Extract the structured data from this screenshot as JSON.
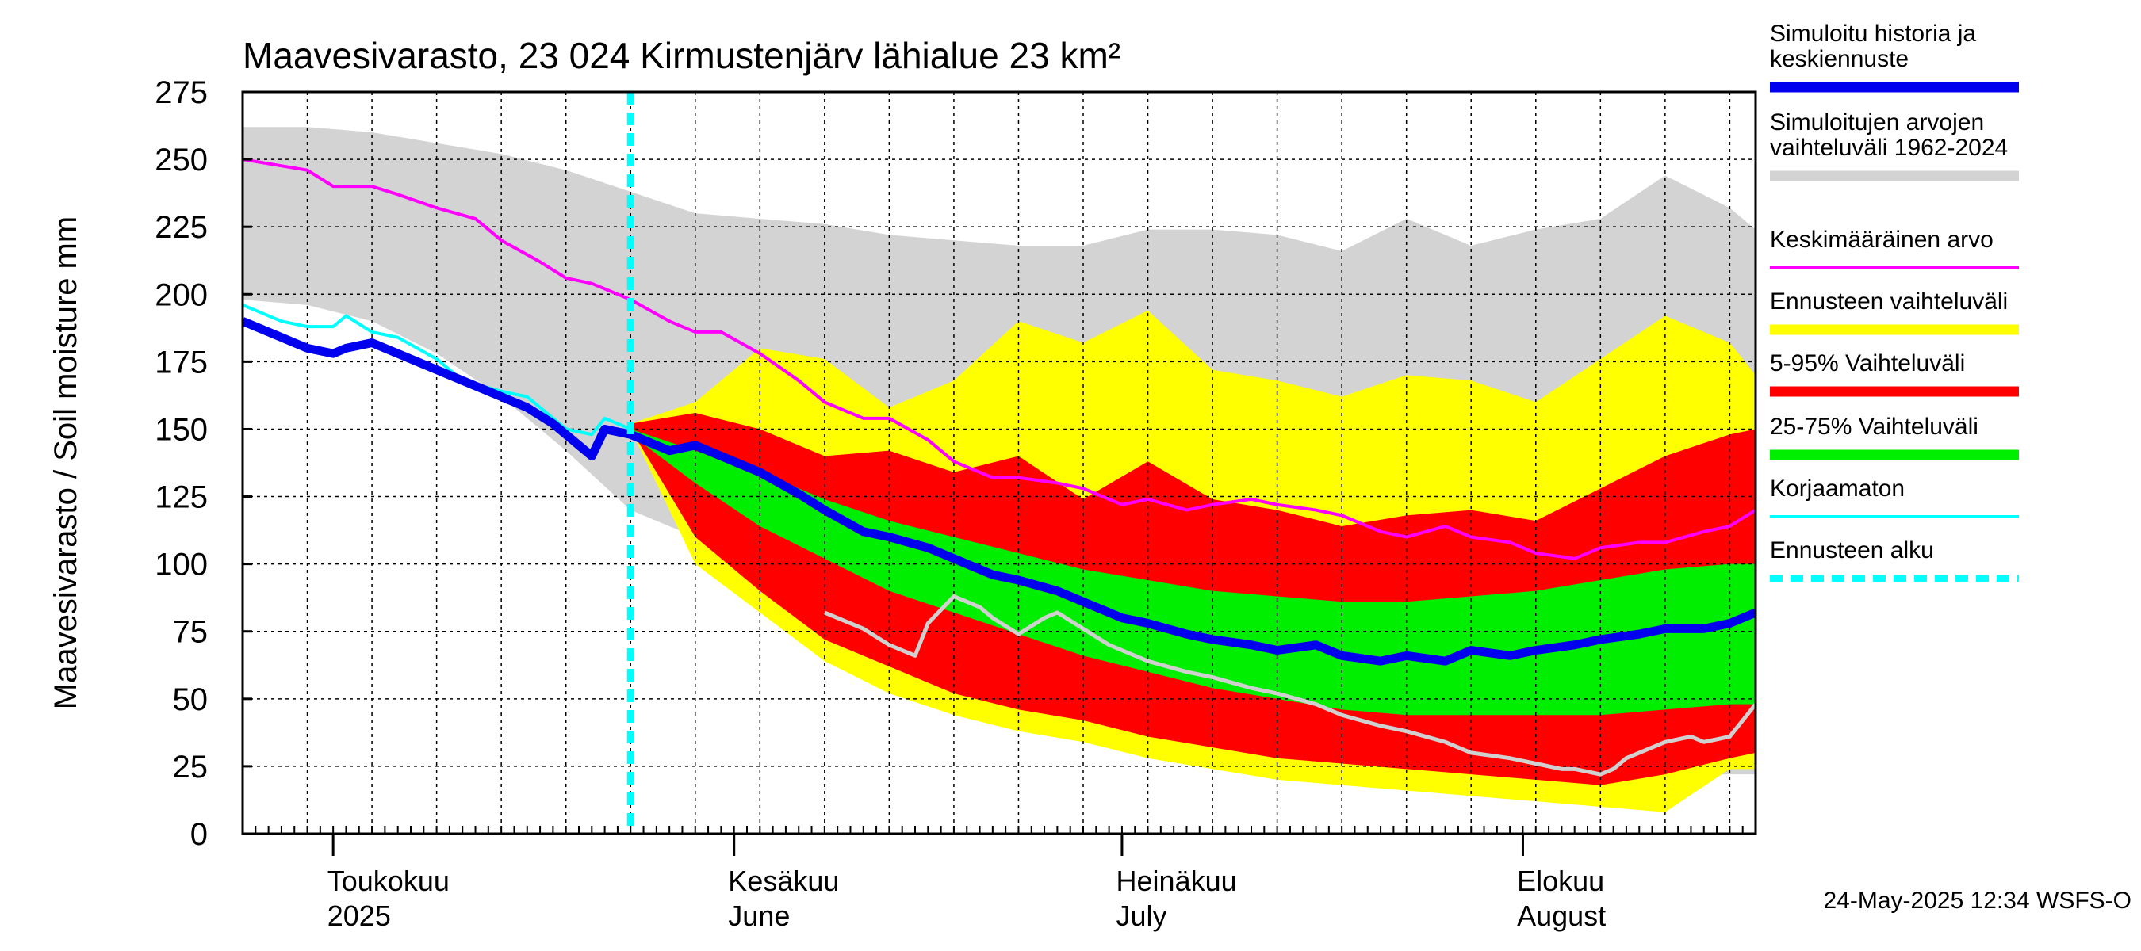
{
  "chart_data": {
    "type": "area",
    "title": "Maavesivarasto, 23 024 Kirmustenjärv lähialue 23 km²",
    "ylabel": "Maavesivarasto / Soil moisture   mm",
    "ylim": [
      0,
      275
    ],
    "yticks": [
      "0",
      "25",
      "50",
      "75",
      "100",
      "125",
      "150",
      "175",
      "200",
      "225",
      "250",
      "275"
    ],
    "xlim_days": [
      0,
      117
    ],
    "month_labels": [
      {
        "fi": "Toukokuu",
        "en": "2025",
        "day": 9
      },
      {
        "fi": "Kesäkuu",
        "en": "June",
        "day": 40
      },
      {
        "fi": "Heinäkuu",
        "en": "July",
        "day": 70
      },
      {
        "fi": "Elokuu",
        "en": "August",
        "day": 101
      }
    ],
    "month_boundaries_days": [
      7,
      38,
      68,
      99
    ],
    "forecast_start_day": 30,
    "note": "day 0 = 24-Apr-2025, values in mm",
    "series": [
      {
        "name": "Simuloitujen arvojen vaihteluväli 1962-2024",
        "color": "#d3d3d3",
        "x": [
          0,
          5,
          10,
          15,
          20,
          25,
          30,
          35,
          40,
          45,
          50,
          55,
          60,
          65,
          70,
          75,
          80,
          85,
          90,
          95,
          100,
          105,
          110,
          115,
          117
        ],
        "upper": [
          262,
          262,
          260,
          256,
          252,
          246,
          238,
          230,
          228,
          226,
          222,
          220,
          218,
          218,
          224,
          224,
          222,
          216,
          228,
          218,
          224,
          228,
          244,
          232,
          224
        ],
        "lower": [
          198,
          196,
          190,
          178,
          162,
          142,
          120,
          110,
          96,
          84,
          76,
          64,
          56,
          48,
          42,
          36,
          32,
          28,
          26,
          24,
          24,
          22,
          22,
          22,
          22
        ]
      },
      {
        "name": "Ennusteen vaihteluväli",
        "color": "#ffff00",
        "x": [
          30,
          35,
          40,
          45,
          50,
          55,
          60,
          65,
          70,
          75,
          80,
          85,
          90,
          95,
          100,
          105,
          110,
          115,
          117
        ],
        "upper": [
          152,
          160,
          180,
          176,
          158,
          168,
          190,
          182,
          194,
          172,
          168,
          162,
          170,
          168,
          160,
          176,
          192,
          182,
          170
        ],
        "lower": [
          150,
          100,
          82,
          64,
          52,
          44,
          38,
          34,
          28,
          24,
          20,
          18,
          16,
          14,
          12,
          10,
          8,
          24,
          24
        ]
      },
      {
        "name": "5-95% Vaihteluväli",
        "color": "#ff0000",
        "x": [
          30,
          35,
          40,
          45,
          50,
          55,
          60,
          65,
          70,
          75,
          80,
          85,
          90,
          95,
          100,
          105,
          110,
          115,
          117
        ],
        "upper": [
          152,
          156,
          150,
          140,
          142,
          134,
          140,
          124,
          138,
          124,
          120,
          114,
          118,
          120,
          116,
          128,
          140,
          148,
          150
        ],
        "lower": [
          150,
          110,
          90,
          72,
          62,
          52,
          46,
          42,
          36,
          32,
          28,
          26,
          24,
          22,
          20,
          18,
          22,
          28,
          30
        ]
      },
      {
        "name": "25-75% Vaihteluväli",
        "color": "#00ee00",
        "x": [
          30,
          35,
          40,
          45,
          50,
          55,
          60,
          65,
          70,
          75,
          80,
          85,
          90,
          95,
          100,
          105,
          110,
          115,
          117
        ],
        "upper": [
          150,
          142,
          134,
          124,
          116,
          110,
          104,
          98,
          94,
          90,
          88,
          86,
          86,
          88,
          90,
          94,
          98,
          100,
          100
        ],
        "lower": [
          148,
          130,
          114,
          102,
          90,
          82,
          74,
          66,
          60,
          54,
          50,
          46,
          44,
          44,
          44,
          44,
          46,
          48,
          48
        ]
      },
      {
        "name": "Keskimääräinen arvo",
        "color": "#ff00ff",
        "x": [
          0,
          5,
          7,
          10,
          12,
          15,
          18,
          20,
          23,
          25,
          27,
          30,
          33,
          35,
          37,
          40,
          43,
          45,
          48,
          50,
          53,
          55,
          58,
          60,
          63,
          65,
          68,
          70,
          73,
          75,
          78,
          80,
          83,
          85,
          88,
          90,
          93,
          95,
          98,
          100,
          103,
          105,
          108,
          110,
          113,
          115,
          117
        ],
        "values": [
          250,
          246,
          240,
          240,
          237,
          232,
          228,
          220,
          212,
          206,
          204,
          198,
          190,
          186,
          186,
          178,
          168,
          160,
          154,
          154,
          146,
          138,
          132,
          132,
          130,
          128,
          122,
          124,
          120,
          122,
          124,
          122,
          120,
          118,
          112,
          110,
          114,
          110,
          108,
          104,
          102,
          106,
          108,
          108,
          112,
          114,
          120
        ]
      },
      {
        "name": "Korjaamaton",
        "color": "#00ffff",
        "x": [
          0,
          3,
          5,
          7,
          8,
          10,
          12,
          15,
          17,
          20,
          22,
          25,
          27,
          28,
          30
        ],
        "values": [
          196,
          190,
          188,
          188,
          192,
          186,
          184,
          176,
          168,
          164,
          162,
          150,
          148,
          154,
          150
        ]
      },
      {
        "name": "Simuloitu historia ja keskiennuste",
        "color": "#0000ee",
        "x": [
          0,
          3,
          5,
          7,
          8,
          10,
          12,
          15,
          17,
          20,
          22,
          24,
          26,
          27,
          28,
          30,
          33,
          35,
          38,
          40,
          43,
          45,
          48,
          50,
          53,
          55,
          58,
          60,
          63,
          65,
          68,
          70,
          73,
          75,
          78,
          80,
          83,
          85,
          88,
          90,
          93,
          95,
          98,
          100,
          103,
          105,
          108,
          110,
          113,
          115,
          117
        ],
        "values": [
          190,
          184,
          180,
          178,
          180,
          182,
          178,
          172,
          168,
          162,
          158,
          152,
          144,
          140,
          150,
          148,
          142,
          144,
          138,
          134,
          126,
          120,
          112,
          110,
          106,
          102,
          96,
          94,
          90,
          86,
          80,
          78,
          74,
          72,
          70,
          68,
          70,
          66,
          64,
          66,
          64,
          68,
          66,
          68,
          70,
          72,
          74,
          76,
          76,
          78,
          82
        ]
      },
      {
        "name": "Gray simulated curve",
        "color": "#d0d0d0",
        "x": [
          45,
          48,
          50,
          52,
          53,
          55,
          57,
          58,
          60,
          62,
          63,
          65,
          67,
          70,
          73,
          75,
          78,
          80,
          83,
          85,
          88,
          90,
          93,
          95,
          98,
          100,
          102,
          103,
          105,
          106,
          107,
          108,
          110,
          112,
          113,
          115,
          117
        ],
        "values": [
          82,
          76,
          70,
          66,
          78,
          88,
          84,
          80,
          74,
          80,
          82,
          76,
          70,
          64,
          60,
          58,
          54,
          52,
          48,
          44,
          40,
          38,
          34,
          30,
          28,
          26,
          24,
          24,
          22,
          24,
          28,
          30,
          34,
          36,
          34,
          36,
          48
        ]
      }
    ]
  },
  "legend": {
    "items": [
      {
        "label": "Simuloitu historia ja keskiennuste",
        "color": "#0000ee",
        "style": "thick"
      },
      {
        "label": "Simuloitujen arvojen vaihteluväli 1962-2024",
        "color": "#d3d3d3",
        "style": "thick"
      },
      {
        "label": "Keskimääräinen arvo",
        "color": "#ff00ff",
        "style": "thin"
      },
      {
        "label": "Ennusteen vaihteluväli",
        "color": "#ffff00",
        "style": "thick"
      },
      {
        "label": "5-95% Vaihteluväli",
        "color": "#ff0000",
        "style": "thick"
      },
      {
        "label": "25-75% Vaihteluväli",
        "color": "#00ee00",
        "style": "thick"
      },
      {
        "label": "Korjaamaton",
        "color": "#00ffff",
        "style": "thin"
      },
      {
        "label": "Ennusteen alku",
        "color": "#00ffff",
        "style": "dashed"
      }
    ]
  },
  "footer": "24-May-2025 12:34 WSFS-O"
}
